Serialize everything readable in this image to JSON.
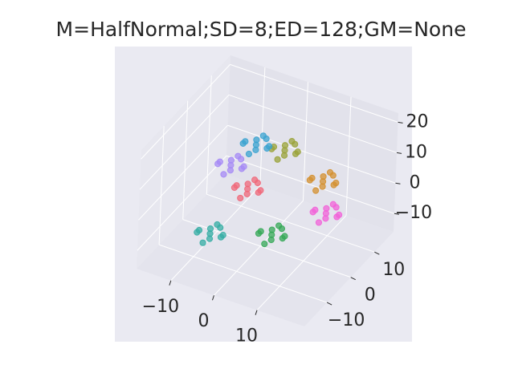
{
  "chart_data": {
    "type": "scatter3d",
    "title": "M=HalfNormal;SD=8;ED=128;GM=None",
    "xlim": [
      -18,
      21
    ],
    "ylim": [
      -19.5,
      18
    ],
    "zlim": [
      -16,
      23
    ],
    "xticks": [
      {
        "value": -10,
        "label": "−10"
      },
      0,
      10
    ],
    "yticks": [
      {
        "value": -10,
        "label": "−10"
      },
      0,
      10
    ],
    "zticks": [
      {
        "value": -10,
        "label": "−10"
      },
      0,
      10,
      20
    ],
    "grid": true,
    "series": [
      {
        "color": "#36ada4",
        "x": [
          -8,
          -6,
          -10,
          -7,
          -9,
          -5,
          -11,
          -8,
          -8,
          -6.5
        ],
        "y": [
          -7,
          -6,
          -8,
          -9,
          -5,
          -7,
          -7,
          -4,
          -10,
          -5.5
        ],
        "z": [
          -10,
          -11,
          -9,
          -9.5,
          -10.5,
          -9,
          -11,
          -9.5,
          -10.5,
          -8.5
        ]
      },
      {
        "color": "#35a857",
        "x": [
          3,
          5,
          1,
          4,
          2,
          6,
          0,
          3,
          3,
          4.5
        ],
        "y": [
          -1,
          0,
          -2,
          -3,
          1,
          -1,
          -1,
          2,
          -4,
          0.5
        ],
        "z": [
          -10,
          -11,
          -9,
          -9.5,
          -10.5,
          -9,
          -11,
          -9.5,
          -10.5,
          -8.5
        ]
      },
      {
        "color": "#f263d8",
        "x": [
          9,
          11,
          7,
          10,
          8,
          12,
          6,
          9,
          9,
          10.5
        ],
        "y": [
          11,
          12,
          10,
          9,
          13,
          11,
          11,
          14,
          8,
          12.5
        ],
        "z": [
          -10,
          -11,
          -9,
          -9.5,
          -10.5,
          -9,
          -11,
          -9.5,
          -10.5,
          -8.5
        ]
      },
      {
        "color": "#f0687a",
        "x": [
          -4,
          -2,
          -6,
          -3,
          -5,
          -1,
          -7,
          -4,
          -4,
          -2.5
        ],
        "y": [
          1,
          2,
          0,
          -1,
          3,
          1,
          1,
          4,
          -2,
          2.5
        ],
        "z": [
          0,
          -1,
          1,
          0.5,
          -0.5,
          1,
          -1,
          0.5,
          -0.5,
          1.5
        ]
      },
      {
        "color": "#d49030",
        "x": [
          8,
          10,
          6,
          9,
          7,
          11,
          5,
          8,
          8,
          9.5
        ],
        "y": [
          11,
          12,
          10,
          9,
          13,
          11,
          11,
          14,
          8,
          12.5
        ],
        "z": [
          0,
          -1,
          1,
          0.5,
          -0.5,
          1,
          -1,
          0.5,
          -0.5,
          1.5
        ]
      },
      {
        "color": "#a58af5",
        "x": [
          -7,
          -5,
          -9,
          -6,
          -8,
          -4,
          -10,
          -7,
          -7,
          -5.5
        ],
        "y": [
          -1,
          0,
          -2,
          -3,
          1,
          -1,
          -1,
          2,
          -4,
          0.5
        ],
        "z": [
          8,
          7,
          9,
          8.5,
          7.5,
          9,
          7,
          8.5,
          7.5,
          9.5
        ]
      },
      {
        "color": "#9aa33a",
        "x": [
          0,
          2,
          -2,
          1,
          -1,
          3,
          -3,
          0,
          0,
          1.5
        ],
        "y": [
          9,
          10,
          8,
          7,
          11,
          9,
          9,
          12,
          6,
          10.5
        ],
        "z": [
          8,
          7,
          9,
          8.5,
          7.5,
          9,
          7,
          8.5,
          7.5,
          9.5
        ]
      },
      {
        "color": "#3ba3d0",
        "x": [
          -4,
          -2,
          -6,
          -3,
          -5,
          -1,
          -7,
          -4,
          -4,
          -2.5
        ],
        "y": [
          4,
          5,
          3,
          2,
          6,
          4,
          4,
          7,
          1,
          5.5
        ],
        "z": [
          12,
          11,
          13,
          12.5,
          11.5,
          13,
          11,
          12.5,
          11.5,
          13.5
        ]
      }
    ]
  }
}
